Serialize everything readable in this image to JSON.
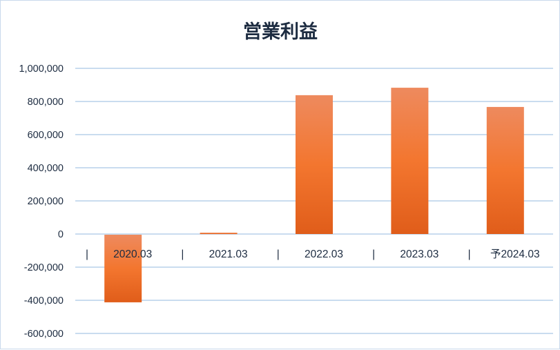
{
  "chart_data": {
    "type": "bar",
    "title": "営業利益",
    "categories": [
      "2020.03",
      "2021.03",
      "2022.03",
      "2023.03",
      "予2024.03"
    ],
    "category_marker": "|",
    "values": [
      -408000,
      8000,
      838000,
      883000,
      767000
    ],
    "ylim": [
      -600000,
      1000000
    ],
    "yticks": [
      -600000,
      -400000,
      -200000,
      0,
      200000,
      400000,
      600000,
      800000,
      1000000
    ],
    "ytick_labels": [
      "-600,000",
      "-400,000",
      "-200,000",
      "0",
      "200,000",
      "400,000",
      "600,000",
      "800,000",
      "1,000,000"
    ],
    "grid": true,
    "legend": "none",
    "colors": {
      "bar_top": "#ee8a5e",
      "bar_mid": "#f3762f",
      "bar_bottom": "#e05d1a",
      "grid": "#c9dcef",
      "text": "#1c2b40"
    }
  }
}
